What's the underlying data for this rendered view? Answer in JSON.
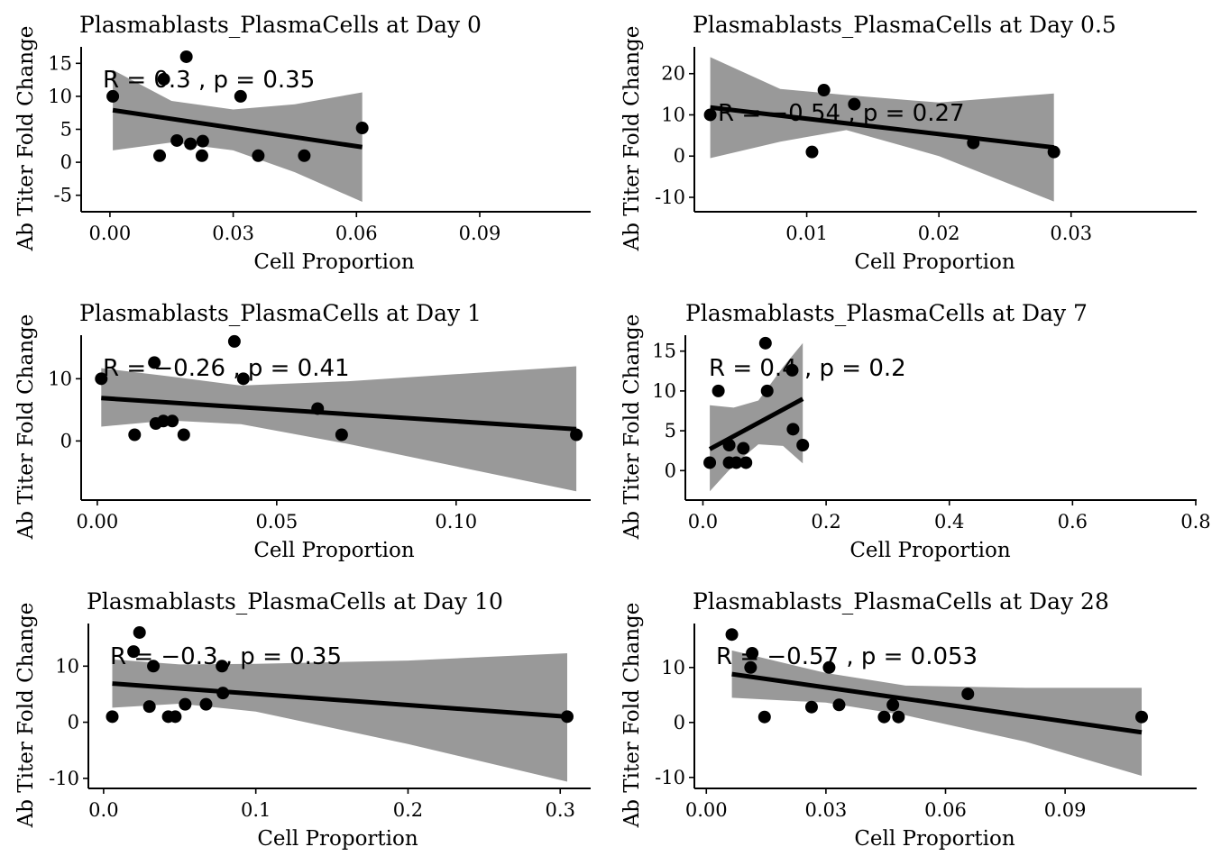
{
  "chart_data": [
    {
      "type": "scatter",
      "title": "Plasmablasts_PlasmaCells at Day 0",
      "xlabel": "Cell Proportion",
      "ylabel": "Ab Titer Fold Change",
      "xlim": [
        -0.007,
        0.117
      ],
      "ylim": [
        -7.5,
        17.5
      ],
      "xticks": [
        0.0,
        0.03,
        0.06,
        0.09
      ],
      "xtick_labels": [
        "0.00",
        "0.03",
        "0.06",
        "0.09"
      ],
      "yticks": [
        -5,
        0,
        5,
        10,
        15
      ],
      "ytick_labels": [
        "-5",
        "0",
        "5",
        "10",
        "15"
      ],
      "annotation": {
        "R": "0.3",
        "p": "0.35",
        "text": "R = 0.3 , p = 0.35"
      },
      "points": [
        {
          "x": 0.0007,
          "y": 10.0
        },
        {
          "x": 0.0121,
          "y": 1.0
        },
        {
          "x": 0.0131,
          "y": 12.6
        },
        {
          "x": 0.0163,
          "y": 3.3
        },
        {
          "x": 0.0186,
          "y": 16.0
        },
        {
          "x": 0.0196,
          "y": 2.8
        },
        {
          "x": 0.0224,
          "y": 1.0
        },
        {
          "x": 0.0226,
          "y": 3.2
        },
        {
          "x": 0.0318,
          "y": 10.0
        },
        {
          "x": 0.0361,
          "y": 1.0
        },
        {
          "x": 0.0473,
          "y": 1.0
        },
        {
          "x": 0.0614,
          "y": 5.2
        }
      ],
      "fit": {
        "x": [
          0.0007,
          0.0614
        ],
        "y": [
          7.9,
          2.3
        ]
      },
      "ci_band": {
        "x": [
          0.0007,
          0.015,
          0.03,
          0.045,
          0.0614
        ],
        "lower": [
          1.8,
          3.0,
          1.8,
          -1.5,
          -6.0
        ],
        "upper": [
          14.0,
          9.3,
          8.0,
          8.8,
          10.6
        ]
      }
    },
    {
      "type": "scatter",
      "title": "Plasmablasts_PlasmaCells at Day 0.5",
      "xlabel": "Cell Proportion",
      "ylabel": "Ab Titer Fold Change",
      "xlim": [
        0.0015,
        0.0395
      ],
      "ylim": [
        -13.5,
        26.5
      ],
      "xticks": [
        0.01,
        0.02,
        0.03
      ],
      "xtick_labels": [
        "0.01",
        "0.02",
        "0.03"
      ],
      "yticks": [
        -10,
        0,
        10,
        20
      ],
      "ytick_labels": [
        "-10",
        "0",
        "10",
        "20"
      ],
      "annotation": {
        "R": "−0.54",
        "p": "0.27",
        "text": "R = −0.54 , p = 0.27"
      },
      "points": [
        {
          "x": 0.0027,
          "y": 10.0
        },
        {
          "x": 0.0104,
          "y": 1.0
        },
        {
          "x": 0.0113,
          "y": 16.0
        },
        {
          "x": 0.0136,
          "y": 12.6
        },
        {
          "x": 0.0226,
          "y": 3.2
        },
        {
          "x": 0.0287,
          "y": 1.0
        }
      ],
      "fit": {
        "x": [
          0.0027,
          0.0287
        ],
        "y": [
          11.8,
          2.1
        ]
      },
      "ci_band": {
        "x": [
          0.0027,
          0.008,
          0.013,
          0.02,
          0.0287
        ],
        "lower": [
          -0.5,
          3.5,
          6.3,
          0.0,
          -11.0
        ],
        "upper": [
          24.0,
          16.3,
          14.8,
          13.0,
          15.2
        ]
      }
    },
    {
      "type": "scatter",
      "title": "Plasmablasts_PlasmaCells at Day 1",
      "xlabel": "Cell Proportion",
      "ylabel": "Ab Titer Fold Change",
      "xlim": [
        -0.0045,
        0.1375
      ],
      "ylim": [
        -9.5,
        17.0
      ],
      "xticks": [
        0.0,
        0.05,
        0.1
      ],
      "xtick_labels": [
        "0.00",
        "0.05",
        "0.10"
      ],
      "yticks": [
        0,
        10
      ],
      "ytick_labels": [
        "0",
        "10"
      ],
      "annotation": {
        "R": "−0.26",
        "p": "0.41",
        "text": "R = −0.26 , p = 0.41"
      },
      "points": [
        {
          "x": 0.0011,
          "y": 10.0
        },
        {
          "x": 0.0104,
          "y": 1.0
        },
        {
          "x": 0.0159,
          "y": 12.6
        },
        {
          "x": 0.0163,
          "y": 2.8
        },
        {
          "x": 0.0184,
          "y": 3.2
        },
        {
          "x": 0.0209,
          "y": 3.2
        },
        {
          "x": 0.0241,
          "y": 1.0
        },
        {
          "x": 0.0382,
          "y": 16.0
        },
        {
          "x": 0.0407,
          "y": 10.0
        },
        {
          "x": 0.0614,
          "y": 5.2
        },
        {
          "x": 0.0681,
          "y": 1.0
        },
        {
          "x": 0.1335,
          "y": 1.0
        }
      ],
      "fit": {
        "x": [
          0.0011,
          0.1335
        ],
        "y": [
          6.9,
          1.9
        ]
      },
      "ci_band": {
        "x": [
          0.0011,
          0.02,
          0.04,
          0.07,
          0.1335
        ],
        "lower": [
          2.3,
          3.3,
          2.7,
          -0.5,
          -8.1
        ],
        "upper": [
          11.7,
          10.4,
          8.9,
          9.6,
          12.0
        ]
      }
    },
    {
      "type": "scatter",
      "title": "Plasmablasts_PlasmaCells at Day 7",
      "xlabel": "Cell Proportion",
      "ylabel": "Ab Titer Fold Change",
      "xlim": [
        -0.0285,
        0.8015
      ],
      "ylim": [
        -3.7,
        17.0
      ],
      "xticks": [
        0.0,
        0.2,
        0.4,
        0.6,
        0.8
      ],
      "xtick_labels": [
        "0.0",
        "0.2",
        "0.4",
        "0.6",
        "0.8"
      ],
      "yticks": [
        0,
        5,
        10,
        15
      ],
      "ytick_labels": [
        "0",
        "5",
        "10",
        "15"
      ],
      "annotation": {
        "R": "0.4",
        "p": "0.2",
        "text": "R = 0.4 , p = 0.2"
      },
      "points": [
        {
          "x": 0.0111,
          "y": 1.0
        },
        {
          "x": 0.0251,
          "y": 10.0
        },
        {
          "x": 0.0426,
          "y": 3.2
        },
        {
          "x": 0.0426,
          "y": 1.0
        },
        {
          "x": 0.0541,
          "y": 1.0
        },
        {
          "x": 0.0656,
          "y": 2.8
        },
        {
          "x": 0.0699,
          "y": 1.0
        },
        {
          "x": 0.1015,
          "y": 16.0
        },
        {
          "x": 0.1043,
          "y": 10.0
        },
        {
          "x": 0.1449,
          "y": 12.6
        },
        {
          "x": 0.1463,
          "y": 5.2
        },
        {
          "x": 0.1621,
          "y": 3.2
        }
      ],
      "fit": {
        "x": [
          0.0111,
          0.1621
        ],
        "y": [
          2.7,
          9.0
        ]
      },
      "ci_band": {
        "x": [
          0.0111,
          0.05,
          0.09,
          0.13,
          0.1621
        ],
        "lower": [
          -2.6,
          0.7,
          3.3,
          3.1,
          0.9
        ],
        "upper": [
          8.2,
          7.9,
          8.8,
          13.0,
          16.0
        ]
      }
    },
    {
      "type": "scatter",
      "title": "Plasmablasts_PlasmaCells at Day 10",
      "xlabel": "Cell Proportion",
      "ylabel": "Ab Titer Fold Change",
      "xlim": [
        -0.01,
        0.32
      ],
      "ylim": [
        -11.8,
        17.6
      ],
      "xticks": [
        0.0,
        0.1,
        0.2,
        0.3
      ],
      "xtick_labels": [
        "0.0",
        "0.1",
        "0.2",
        "0.3"
      ],
      "yticks": [
        -10,
        0,
        10
      ],
      "ytick_labels": [
        "-10",
        "0",
        "10"
      ],
      "annotation": {
        "R": "−0.3",
        "p": "0.35",
        "text": "R = −0.3 , p = 0.35"
      },
      "points": [
        {
          "x": 0.0057,
          "y": 1.0
        },
        {
          "x": 0.0197,
          "y": 12.6
        },
        {
          "x": 0.0236,
          "y": 16.0
        },
        {
          "x": 0.0301,
          "y": 2.8
        },
        {
          "x": 0.0327,
          "y": 10.0
        },
        {
          "x": 0.0425,
          "y": 1.0
        },
        {
          "x": 0.0471,
          "y": 1.0
        },
        {
          "x": 0.0536,
          "y": 3.2
        },
        {
          "x": 0.0673,
          "y": 3.2
        },
        {
          "x": 0.0778,
          "y": 10.0
        },
        {
          "x": 0.0784,
          "y": 5.2
        },
        {
          "x": 0.3046,
          "y": 1.0
        }
      ],
      "fit": {
        "x": [
          0.0057,
          0.3046
        ],
        "y": [
          6.9,
          1.0
        ]
      },
      "ci_band": {
        "x": [
          0.0057,
          0.05,
          0.1,
          0.2,
          0.3046
        ],
        "lower": [
          2.6,
          3.3,
          1.9,
          -3.9,
          -10.6
        ],
        "upper": [
          11.2,
          10.3,
          10.4,
          11.0,
          12.3
        ]
      }
    },
    {
      "type": "scatter",
      "title": "Plasmablasts_PlasmaCells at Day 28",
      "xlabel": "Cell Proportion",
      "ylabel": "Ab Titer Fold Change",
      "xlim": [
        -0.003,
        0.123
      ],
      "ylim": [
        -12.0,
        18.0
      ],
      "xticks": [
        0.0,
        0.03,
        0.06,
        0.09
      ],
      "xtick_labels": [
        "0.00",
        "0.03",
        "0.06",
        "0.09"
      ],
      "yticks": [
        -10,
        0,
        10
      ],
      "ytick_labels": [
        "-10",
        "0",
        "10"
      ],
      "annotation": {
        "R": "−0.57",
        "p": "0.053",
        "text": "R = −0.57 , p = 0.053"
      },
      "points": [
        {
          "x": 0.0064,
          "y": 16.0
        },
        {
          "x": 0.0111,
          "y": 10.0
        },
        {
          "x": 0.0115,
          "y": 12.6
        },
        {
          "x": 0.0146,
          "y": 1.0
        },
        {
          "x": 0.0264,
          "y": 2.8
        },
        {
          "x": 0.0308,
          "y": 10.0
        },
        {
          "x": 0.0333,
          "y": 3.2
        },
        {
          "x": 0.0446,
          "y": 1.0
        },
        {
          "x": 0.0468,
          "y": 3.2
        },
        {
          "x": 0.0482,
          "y": 1.0
        },
        {
          "x": 0.0656,
          "y": 5.2
        },
        {
          "x": 0.1092,
          "y": 1.0
        }
      ],
      "fit": {
        "x": [
          0.0064,
          0.1092
        ],
        "y": [
          8.8,
          -1.8
        ]
      },
      "ci_band": {
        "x": [
          0.0064,
          0.03,
          0.05,
          0.08,
          0.1092
        ],
        "lower": [
          4.5,
          3.6,
          1.3,
          -3.5,
          -9.7
        ],
        "upper": [
          13.1,
          9.0,
          6.7,
          6.3,
          6.3
        ]
      }
    }
  ]
}
